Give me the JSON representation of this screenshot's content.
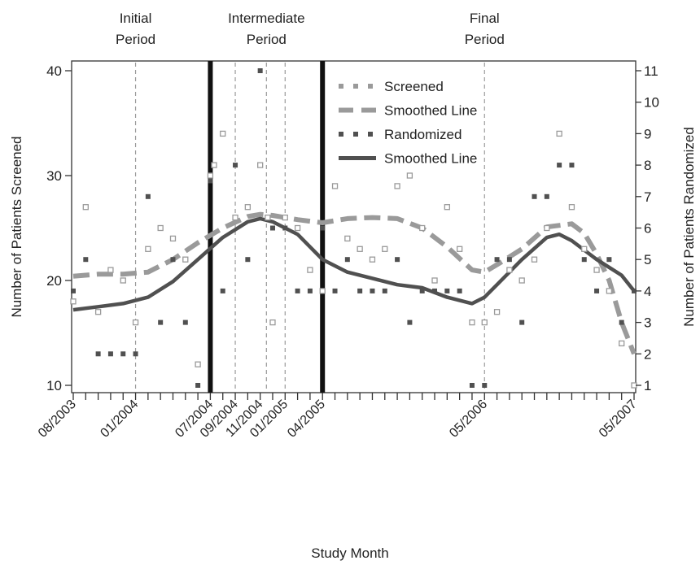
{
  "chart_data": {
    "type": "line",
    "xlabel": "Study Month",
    "ylabel_left": "Number of Patients Screened",
    "ylabel_right": "Number of Patients Randomized",
    "x_range": [
      0,
      45
    ],
    "y_left_range": [
      10,
      40
    ],
    "y_right_range": [
      1,
      11
    ],
    "y_left_ticks": [
      10,
      20,
      30,
      40
    ],
    "y_right_ticks": [
      1,
      2,
      3,
      4,
      5,
      6,
      7,
      8,
      9,
      10,
      11
    ],
    "x_tick_labels": [
      {
        "label": "08/2003",
        "month": 0
      },
      {
        "label": "01/2004",
        "month": 5
      },
      {
        "label": "07/2004",
        "month": 11
      },
      {
        "label": "09/2004",
        "month": 13
      },
      {
        "label": "11/2004",
        "month": 15
      },
      {
        "label": "01/2005",
        "month": 17
      },
      {
        "label": "04/2005",
        "month": 20
      },
      {
        "label": "05/2006",
        "month": 33
      },
      {
        "label": "05/2007",
        "month": 45
      }
    ],
    "periods": [
      {
        "label_line1": "Initial",
        "label_line2": "Period",
        "month": 5
      },
      {
        "label_line1": "Intermediate",
        "label_line2": "Period",
        "month": 15.5
      },
      {
        "label_line1": "Final",
        "label_line2": "Period",
        "month": 33
      }
    ],
    "period_boundaries": [
      11,
      20
    ],
    "dashed_reference_months": [
      5,
      13,
      15.5,
      17,
      33
    ],
    "legend": [
      {
        "label": "Screened",
        "style": "dotted-light"
      },
      {
        "label": "Smoothed Line",
        "style": "dashed-light"
      },
      {
        "label": "Randomized",
        "style": "dotted-dark"
      },
      {
        "label": "Smoothed Line",
        "style": "solid-dark"
      }
    ],
    "colors": {
      "light": "#9a9a9a",
      "dark": "#505050",
      "boundary": "#111111"
    },
    "series": [
      {
        "name": "Screened",
        "axis": "left",
        "points": [
          [
            0,
            18
          ],
          [
            1,
            27
          ],
          [
            2,
            17
          ],
          [
            3,
            21
          ],
          [
            4,
            20
          ],
          [
            5,
            16
          ],
          [
            6,
            23
          ],
          [
            7,
            25
          ],
          [
            8,
            24
          ],
          [
            9,
            22
          ],
          [
            10,
            12
          ],
          [
            11,
            30
          ],
          [
            11.3,
            31
          ],
          [
            12,
            34
          ],
          [
            13,
            26
          ],
          [
            14,
            27
          ],
          [
            15,
            31
          ],
          [
            15.6,
            26
          ],
          [
            16,
            16
          ],
          [
            17,
            26
          ],
          [
            18,
            25
          ],
          [
            19,
            21
          ],
          [
            20,
            19
          ],
          [
            21,
            29
          ],
          [
            22,
            24
          ],
          [
            23,
            23
          ],
          [
            24,
            22
          ],
          [
            25,
            23
          ],
          [
            26,
            29
          ],
          [
            27,
            30
          ],
          [
            28,
            25
          ],
          [
            29,
            20
          ],
          [
            30,
            27
          ],
          [
            31,
            23
          ],
          [
            32,
            16
          ],
          [
            33,
            16
          ],
          [
            34,
            17
          ],
          [
            35,
            21
          ],
          [
            36,
            20
          ],
          [
            37,
            22
          ],
          [
            38,
            25
          ],
          [
            39,
            34
          ],
          [
            40,
            27
          ],
          [
            41,
            23
          ],
          [
            42,
            21
          ],
          [
            43,
            19
          ],
          [
            44,
            14
          ],
          [
            45,
            10
          ]
        ]
      },
      {
        "name": "Smoothed Line",
        "axis": "left",
        "points": [
          [
            0,
            20.4
          ],
          [
            2,
            20.6
          ],
          [
            4,
            20.6
          ],
          [
            6,
            20.8
          ],
          [
            8,
            22
          ],
          [
            10,
            23.6
          ],
          [
            12,
            25
          ],
          [
            14,
            26.1
          ],
          [
            15,
            26.3
          ],
          [
            16,
            26.2
          ],
          [
            18,
            25.8
          ],
          [
            20,
            25.5
          ],
          [
            22,
            25.9
          ],
          [
            24,
            26
          ],
          [
            26,
            25.9
          ],
          [
            28,
            25
          ],
          [
            30,
            23.2
          ],
          [
            32,
            21
          ],
          [
            33,
            20.8
          ],
          [
            34,
            21.5
          ],
          [
            36,
            23
          ],
          [
            38,
            25.1
          ],
          [
            40,
            25.4
          ],
          [
            41,
            24.5
          ],
          [
            42,
            22.5
          ],
          [
            43,
            20
          ],
          [
            44,
            16
          ],
          [
            45,
            13
          ]
        ]
      },
      {
        "name": "Randomized",
        "axis": "right",
        "points": [
          [
            0,
            4
          ],
          [
            1,
            5
          ],
          [
            2,
            2
          ],
          [
            3,
            2
          ],
          [
            4,
            2
          ],
          [
            5,
            2
          ],
          [
            6,
            7
          ],
          [
            7,
            3
          ],
          [
            8,
            5
          ],
          [
            9,
            3
          ],
          [
            10,
            1
          ],
          [
            11,
            7.5
          ],
          [
            12,
            4
          ],
          [
            13,
            8
          ],
          [
            14,
            5
          ],
          [
            15,
            11
          ],
          [
            16,
            6
          ],
          [
            17,
            6
          ],
          [
            18,
            4
          ],
          [
            19,
            4
          ],
          [
            20,
            6
          ],
          [
            21,
            4
          ],
          [
            22,
            5
          ],
          [
            23,
            4
          ],
          [
            24,
            4
          ],
          [
            25,
            4
          ],
          [
            26,
            5
          ],
          [
            27,
            3
          ],
          [
            28,
            4
          ],
          [
            29,
            4
          ],
          [
            30,
            4
          ],
          [
            31,
            4
          ],
          [
            32,
            1
          ],
          [
            33,
            1
          ],
          [
            34,
            5
          ],
          [
            35,
            5
          ],
          [
            36,
            3
          ],
          [
            37,
            7
          ],
          [
            38,
            7
          ],
          [
            39,
            8
          ],
          [
            40,
            8
          ],
          [
            41,
            5
          ],
          [
            42,
            4
          ],
          [
            43,
            5
          ],
          [
            44,
            3
          ],
          [
            45,
            4
          ]
        ]
      },
      {
        "name": "Smoothed Line",
        "axis": "right",
        "points": [
          [
            0,
            3.4
          ],
          [
            2,
            3.5
          ],
          [
            4,
            3.6
          ],
          [
            6,
            3.8
          ],
          [
            8,
            4.3
          ],
          [
            10,
            5
          ],
          [
            12,
            5.7
          ],
          [
            14,
            6.2
          ],
          [
            15,
            6.3
          ],
          [
            16,
            6.2
          ],
          [
            18,
            5.8
          ],
          [
            20,
            5
          ],
          [
            22,
            4.6
          ],
          [
            24,
            4.4
          ],
          [
            26,
            4.2
          ],
          [
            28,
            4.1
          ],
          [
            30,
            3.8
          ],
          [
            32,
            3.6
          ],
          [
            33,
            3.8
          ],
          [
            34,
            4.2
          ],
          [
            36,
            5
          ],
          [
            38,
            5.7
          ],
          [
            39,
            5.8
          ],
          [
            40,
            5.6
          ],
          [
            42,
            5
          ],
          [
            44,
            4.5
          ],
          [
            45,
            4
          ]
        ]
      }
    ]
  }
}
